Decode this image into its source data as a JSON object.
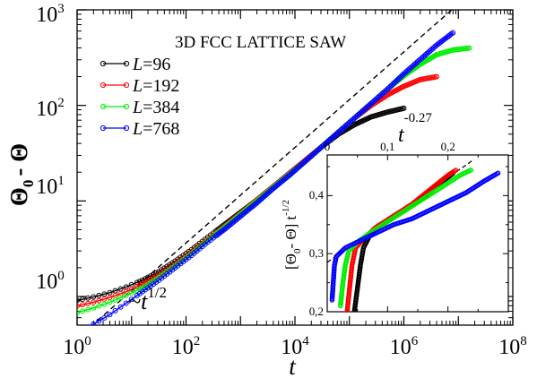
{
  "chart_data": [
    {
      "type": "line",
      "title": "3D FCC LATTICE SAW",
      "xlabel": "t",
      "ylabel_main": "Θ",
      "ylabel_sub": "0",
      "ylabel_rest": "- Θ",
      "xscale": "log",
      "yscale": "log",
      "xlim_log10": [
        0,
        8
      ],
      "ylim_log10": [
        -0.3,
        3
      ],
      "x_ticks": [
        {
          "base": "10",
          "exp": "0",
          "log": 0
        },
        {
          "base": "10",
          "exp": "2",
          "log": 2
        },
        {
          "base": "10",
          "exp": "4",
          "log": 4
        },
        {
          "base": "10",
          "exp": "6",
          "log": 6
        },
        {
          "base": "10",
          "exp": "8",
          "log": 8
        }
      ],
      "y_ticks": [
        {
          "base": "10",
          "exp": "0",
          "log": 0
        },
        {
          "base": "10",
          "exp": "1",
          "log": 1
        },
        {
          "base": "10",
          "exp": "2",
          "log": 2
        },
        {
          "base": "10",
          "exp": "3",
          "log": 3
        }
      ],
      "legend_position": "top-left",
      "series": [
        {
          "name_var": "L",
          "name_val": "=96",
          "color": "#000000",
          "log_x": [
            0,
            0.3,
            0.6,
            0.9,
            1.2,
            1.5,
            1.8,
            2.1,
            2.4,
            2.7,
            3,
            3.3,
            3.6,
            3.9,
            4.2,
            4.5,
            4.8,
            5.1,
            5.4,
            5.7,
            6
          ],
          "log_y": [
            -0.04,
            -0.005,
            0.04,
            0.1,
            0.17,
            0.26,
            0.37,
            0.49,
            0.62,
            0.75,
            0.88,
            1.01,
            1.15,
            1.29,
            1.43,
            1.57,
            1.7,
            1.8,
            1.88,
            1.93,
            1.97
          ]
        },
        {
          "name_var": "L",
          "name_val": "=192",
          "color": "#ff0000",
          "log_x": [
            0,
            0.3,
            0.6,
            0.9,
            1.2,
            1.5,
            1.8,
            2.1,
            2.4,
            2.7,
            3,
            3.3,
            3.6,
            3.9,
            4.2,
            4.5,
            4.8,
            5.1,
            5.4,
            5.7,
            6,
            6.3,
            6.6
          ],
          "log_y": [
            -0.1,
            -0.06,
            -0.01,
            0.05,
            0.13,
            0.23,
            0.34,
            0.47,
            0.6,
            0.73,
            0.87,
            1.01,
            1.15,
            1.29,
            1.43,
            1.57,
            1.72,
            1.87,
            2,
            2.11,
            2.2,
            2.27,
            2.3
          ]
        },
        {
          "name_var": "L",
          "name_val": "=384",
          "color": "#00ee00",
          "log_x": [
            0,
            0.3,
            0.6,
            0.9,
            1.2,
            1.5,
            1.8,
            2.1,
            2.4,
            2.7,
            3,
            3.3,
            3.6,
            3.9,
            4.2,
            4.5,
            4.8,
            5.1,
            5.4,
            5.7,
            6,
            6.3,
            6.6,
            6.9,
            7.2
          ],
          "log_y": [
            -0.17,
            -0.12,
            -0.06,
            0.01,
            0.09,
            0.2,
            0.32,
            0.45,
            0.59,
            0.72,
            0.86,
            1,
            1.14,
            1.28,
            1.42,
            1.57,
            1.72,
            1.87,
            2.02,
            2.17,
            2.31,
            2.43,
            2.53,
            2.58,
            2.6
          ]
        },
        {
          "name_var": "L",
          "name_val": "=768",
          "color": "#0000ff",
          "log_x": [
            0,
            0.3,
            0.6,
            0.9,
            1.2,
            1.5,
            1.8,
            2.1,
            2.4,
            2.7,
            3,
            3.3,
            3.6,
            3.9,
            4.2,
            4.5,
            4.8,
            5.1,
            5.4,
            5.7,
            6,
            6.3,
            6.6,
            6.9
          ],
          "log_y": [
            -0.38,
            -0.29,
            -0.19,
            -0.07,
            0.05,
            0.17,
            0.3,
            0.43,
            0.57,
            0.7,
            0.84,
            0.98,
            1.13,
            1.27,
            1.42,
            1.57,
            1.72,
            1.87,
            2.02,
            2.17,
            2.33,
            2.48,
            2.63,
            2.76
          ]
        }
      ],
      "annotations": [
        {
          "id": "slope-half",
          "base": "~t",
          "exp": "1/2",
          "slope": 0.5,
          "log_y_at_x0": -0.44
        },
        {
          "id": "exponent",
          "base": "t",
          "exp": "-0.27"
        }
      ]
    },
    {
      "type": "scatter",
      "inset": true,
      "xlabel": "",
      "ylabel_left": "[Θ",
      "ylabel_sub": "0",
      "ylabel_mid": "- Θ] t",
      "ylabel_exp": "-1/2",
      "xlim": [
        0,
        0.3
      ],
      "ylim": [
        0.2,
        0.47
      ],
      "x_ticks": [
        "0",
        "0,1",
        "0,2"
      ],
      "x_tick_values": [
        0,
        0.1,
        0.2
      ],
      "y_ticks": [
        "0,2",
        "0,3",
        "0,4"
      ],
      "y_tick_values": [
        0.2,
        0.3,
        0.4
      ],
      "series": [
        {
          "color": "#000000",
          "x": [
            0.045,
            0.05,
            0.055,
            0.06,
            0.07,
            0.09,
            0.12,
            0.15,
            0.18,
            0.21
          ],
          "y": [
            0.2,
            0.24,
            0.28,
            0.31,
            0.33,
            0.35,
            0.37,
            0.39,
            0.415,
            0.44
          ]
        },
        {
          "color": "#ff0000",
          "x": [
            0.033,
            0.037,
            0.041,
            0.047,
            0.06,
            0.08,
            0.11,
            0.14,
            0.17,
            0.2,
            0.215
          ],
          "y": [
            0.2,
            0.24,
            0.28,
            0.31,
            0.325,
            0.345,
            0.365,
            0.385,
            0.41,
            0.435,
            0.445
          ]
        },
        {
          "color": "#00ee00",
          "x": [
            0.022,
            0.026,
            0.03,
            0.036,
            0.05,
            0.07,
            0.1,
            0.13,
            0.16,
            0.19,
            0.22,
            0.24
          ],
          "y": [
            0.21,
            0.25,
            0.28,
            0.305,
            0.32,
            0.335,
            0.355,
            0.375,
            0.395,
            0.415,
            0.435,
            0.445
          ]
        },
        {
          "color": "#0000ff",
          "x": [
            0.008,
            0.01,
            0.012,
            0.015,
            0.02,
            0.03,
            0.05,
            0.08,
            0.11,
            0.14,
            0.17,
            0.2,
            0.23,
            0.26,
            0.285
          ],
          "y": [
            0.22,
            0.25,
            0.28,
            0.295,
            0.3,
            0.31,
            0.32,
            0.335,
            0.35,
            0.36,
            0.375,
            0.39,
            0.405,
            0.425,
            0.44
          ]
        }
      ],
      "reference_line": {
        "x": [
          0,
          0.24
        ],
        "y": [
          0.285,
          0.46
        ]
      }
    }
  ]
}
